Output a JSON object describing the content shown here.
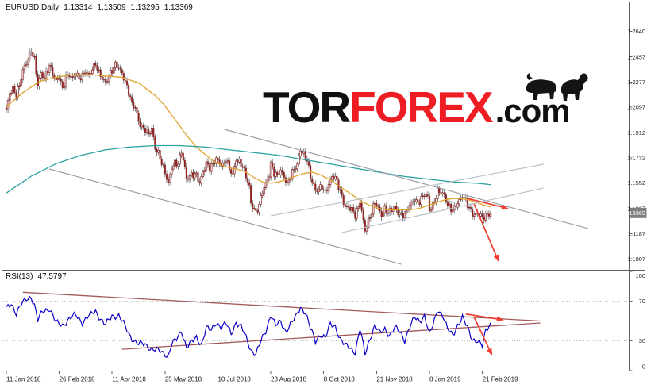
{
  "header": {
    "symbol_period": "EURUSD,Daily",
    "open": "1.13314",
    "high": "1.13509",
    "low": "1.13295",
    "close": "1.13369"
  },
  "watermark": {
    "tor": "TOR",
    "forex": "FOREX",
    "com": ".com"
  },
  "colors": {
    "bull_body": "#ffffff",
    "bear_body": "#8e2323",
    "candle_outline": "#8e2323",
    "wick": "#4a4a4a",
    "ma_fast": "#dfa32d",
    "ma_slow": "#2ba3a3",
    "trend_gray": "#9aa0a6",
    "trend_light": "#b9c2c9",
    "arrow": "#ef3b30",
    "rsi_line": "#0a00c8",
    "rsi_wedge": "#a25b5b",
    "price_tag_bg": "#7f7f7f",
    "frame": "#616161",
    "logo_red": "#ee1c23",
    "logo_black": "#101010"
  },
  "chart_data": {
    "type": "candlestick",
    "symbol": "EURUSD",
    "timeframe": "Daily",
    "last_quote": {
      "open": 1.13314,
      "high": 1.13509,
      "low": 1.13295,
      "close": 1.13369
    },
    "x_axis": {
      "bars_total": 294,
      "tick_bars": [
        0,
        32,
        64,
        96,
        128,
        160,
        192,
        224,
        256,
        288
      ],
      "tick_labels": [
        "11 Jan 2018",
        "26 Feb 2018",
        "11 Apr 2018",
        "25 May 2018",
        "10 Jul 2018",
        "23 Aug 2018",
        "8 Oct 2018",
        "21 Nov 2018",
        "8 Jan 2019",
        "21 Feb 2019"
      ]
    },
    "y_axis": {
      "range": [
        1.094,
        1.278
      ],
      "tick_labels": [
        "1.2640",
        "1.2457",
        "1.2277",
        "1.2097",
        "1.1912",
        "1.1732",
        "1.1552",
        "1.1367",
        "1.1187",
        "1.1007"
      ],
      "current_label": "1.13369"
    },
    "close_anchors": [
      [
        0,
        1.206
      ],
      [
        2,
        1.219
      ],
      [
        4,
        1.223
      ],
      [
        6,
        1.22
      ],
      [
        8,
        1.226
      ],
      [
        10,
        1.235
      ],
      [
        12,
        1.24
      ],
      [
        14,
        1.247
      ],
      [
        15,
        1.251
      ],
      [
        17,
        1.245
      ],
      [
        19,
        1.226
      ],
      [
        21,
        1.233
      ],
      [
        23,
        1.229
      ],
      [
        26,
        1.24
      ],
      [
        28,
        1.235
      ],
      [
        30,
        1.229
      ],
      [
        32,
        1.231
      ],
      [
        34,
        1.221
      ],
      [
        36,
        1.231
      ],
      [
        38,
        1.234
      ],
      [
        40,
        1.231
      ],
      [
        42,
        1.234
      ],
      [
        44,
        1.229
      ],
      [
        46,
        1.231
      ],
      [
        48,
        1.236
      ],
      [
        50,
        1.233
      ],
      [
        52,
        1.238
      ],
      [
        54,
        1.24
      ],
      [
        56,
        1.233
      ],
      [
        58,
        1.23
      ],
      [
        60,
        1.228
      ],
      [
        62,
        1.233
      ],
      [
        64,
        1.236
      ],
      [
        66,
        1.239
      ],
      [
        68,
        1.237
      ],
      [
        70,
        1.234
      ],
      [
        72,
        1.229
      ],
      [
        74,
        1.221
      ],
      [
        76,
        1.211
      ],
      [
        78,
        1.208
      ],
      [
        80,
        1.199
      ],
      [
        82,
        1.196
      ],
      [
        84,
        1.195
      ],
      [
        86,
        1.19
      ],
      [
        88,
        1.193
      ],
      [
        90,
        1.179
      ],
      [
        92,
        1.177
      ],
      [
        94,
        1.171
      ],
      [
        96,
        1.163
      ],
      [
        98,
        1.154
      ],
      [
        100,
        1.165
      ],
      [
        102,
        1.169
      ],
      [
        104,
        1.17
      ],
      [
        106,
        1.179
      ],
      [
        108,
        1.166
      ],
      [
        109,
        1.157
      ],
      [
        111,
        1.159
      ],
      [
        113,
        1.161
      ],
      [
        115,
        1.162
      ],
      [
        117,
        1.156
      ],
      [
        119,
        1.163
      ],
      [
        121,
        1.168
      ],
      [
        123,
        1.165
      ],
      [
        125,
        1.169
      ],
      [
        127,
        1.174
      ],
      [
        129,
        1.17
      ],
      [
        131,
        1.167
      ],
      [
        133,
        1.171
      ],
      [
        135,
        1.165
      ],
      [
        137,
        1.162
      ],
      [
        139,
        1.173
      ],
      [
        141,
        1.17
      ],
      [
        143,
        1.166
      ],
      [
        145,
        1.159
      ],
      [
        147,
        1.153
      ],
      [
        148,
        1.141
      ],
      [
        150,
        1.138
      ],
      [
        151,
        1.134
      ],
      [
        153,
        1.139
      ],
      [
        155,
        1.148
      ],
      [
        157,
        1.154
      ],
      [
        159,
        1.162
      ],
      [
        160,
        1.17
      ],
      [
        162,
        1.163
      ],
      [
        164,
        1.16
      ],
      [
        166,
        1.163
      ],
      [
        168,
        1.159
      ],
      [
        170,
        1.155
      ],
      [
        172,
        1.162
      ],
      [
        174,
        1.165
      ],
      [
        176,
        1.167
      ],
      [
        178,
        1.178
      ],
      [
        180,
        1.176
      ],
      [
        182,
        1.173
      ],
      [
        184,
        1.16
      ],
      [
        186,
        1.153
      ],
      [
        187,
        1.148
      ],
      [
        189,
        1.15
      ],
      [
        191,
        1.153
      ],
      [
        193,
        1.149
      ],
      [
        195,
        1.155
      ],
      [
        197,
        1.159
      ],
      [
        199,
        1.158
      ],
      [
        201,
        1.152
      ],
      [
        203,
        1.146
      ],
      [
        205,
        1.139
      ],
      [
        207,
        1.138
      ],
      [
        209,
        1.135
      ],
      [
        211,
        1.131
      ],
      [
        213,
        1.138
      ],
      [
        214,
        1.143
      ],
      [
        216,
        1.129
      ],
      [
        217,
        1.122
      ],
      [
        219,
        1.127
      ],
      [
        221,
        1.133
      ],
      [
        223,
        1.141
      ],
      [
        225,
        1.138
      ],
      [
        227,
        1.133
      ],
      [
        229,
        1.137
      ],
      [
        231,
        1.133
      ],
      [
        233,
        1.135
      ],
      [
        235,
        1.138
      ],
      [
        237,
        1.135
      ],
      [
        239,
        1.133
      ],
      [
        241,
        1.132
      ],
      [
        243,
        1.136
      ],
      [
        245,
        1.14
      ],
      [
        247,
        1.144
      ],
      [
        249,
        1.142
      ],
      [
        251,
        1.144
      ],
      [
        253,
        1.146
      ],
      [
        255,
        1.144
      ],
      [
        256,
        1.135
      ],
      [
        258,
        1.14
      ],
      [
        260,
        1.147
      ],
      [
        261,
        1.15
      ],
      [
        263,
        1.148
      ],
      [
        265,
        1.145
      ],
      [
        267,
        1.139
      ],
      [
        269,
        1.137
      ],
      [
        271,
        1.138
      ],
      [
        273,
        1.141
      ],
      [
        275,
        1.143
      ],
      [
        276,
        1.145
      ],
      [
        278,
        1.142
      ],
      [
        280,
        1.138
      ],
      [
        282,
        1.134
      ],
      [
        284,
        1.133
      ],
      [
        286,
        1.132
      ],
      [
        288,
        1.129
      ],
      [
        290,
        1.132
      ],
      [
        292,
        1.134
      ],
      [
        293,
        1.1337
      ]
    ],
    "moving_averages": [
      {
        "name": "ma-fast",
        "color": "#dfa32d",
        "points": [
          [
            0,
            1.21
          ],
          [
            10,
            1.22
          ],
          [
            20,
            1.228
          ],
          [
            30,
            1.231
          ],
          [
            40,
            1.233
          ],
          [
            50,
            1.233
          ],
          [
            60,
            1.232
          ],
          [
            70,
            1.231
          ],
          [
            80,
            1.227
          ],
          [
            90,
            1.218
          ],
          [
            95,
            1.212
          ],
          [
            100,
            1.204
          ],
          [
            105,
            1.196
          ],
          [
            110,
            1.188
          ],
          [
            115,
            1.181
          ],
          [
            120,
            1.176
          ],
          [
            125,
            1.171
          ],
          [
            130,
            1.168
          ],
          [
            135,
            1.166
          ],
          [
            140,
            1.165
          ],
          [
            145,
            1.163
          ],
          [
            150,
            1.159
          ],
          [
            155,
            1.156
          ],
          [
            160,
            1.155
          ],
          [
            165,
            1.156
          ],
          [
            170,
            1.158
          ],
          [
            175,
            1.16
          ],
          [
            180,
            1.162
          ],
          [
            185,
            1.163
          ],
          [
            190,
            1.161
          ],
          [
            195,
            1.158
          ],
          [
            200,
            1.154
          ],
          [
            205,
            1.15
          ],
          [
            210,
            1.146
          ],
          [
            215,
            1.142
          ],
          [
            220,
            1.139
          ],
          [
            225,
            1.137
          ],
          [
            230,
            1.136
          ],
          [
            235,
            1.136
          ],
          [
            240,
            1.136
          ],
          [
            245,
            1.136
          ],
          [
            250,
            1.137
          ],
          [
            255,
            1.139
          ],
          [
            260,
            1.141
          ],
          [
            265,
            1.143
          ],
          [
            270,
            1.144
          ],
          [
            275,
            1.144
          ],
          [
            280,
            1.143
          ],
          [
            285,
            1.141
          ],
          [
            290,
            1.139
          ],
          [
            293,
            1.138
          ]
        ]
      },
      {
        "name": "ma-slow",
        "color": "#2ba3a3",
        "points": [
          [
            0,
            1.148
          ],
          [
            15,
            1.16
          ],
          [
            30,
            1.169
          ],
          [
            45,
            1.175
          ],
          [
            60,
            1.179
          ],
          [
            75,
            1.181
          ],
          [
            90,
            1.182
          ],
          [
            105,
            1.182
          ],
          [
            120,
            1.181
          ],
          [
            135,
            1.179
          ],
          [
            150,
            1.177
          ],
          [
            165,
            1.175
          ],
          [
            180,
            1.172
          ],
          [
            195,
            1.169
          ],
          [
            210,
            1.166
          ],
          [
            225,
            1.163
          ],
          [
            240,
            1.16
          ],
          [
            255,
            1.158
          ],
          [
            270,
            1.156
          ],
          [
            285,
            1.155
          ],
          [
            293,
            1.154
          ]
        ]
      }
    ],
    "trendlines": [
      {
        "name": "descending-resistance",
        "color": "#9aa0a6",
        "from": [
          132,
          1.1937
        ],
        "to": [
          352,
          1.1224
        ]
      },
      {
        "name": "descending-support",
        "color": "#9aa0a6",
        "from": [
          26,
          1.1652
        ],
        "to": [
          239,
          1.0968
        ]
      },
      {
        "name": "ascending-channel-upper",
        "color": "#b9c2c9",
        "from": [
          160,
          1.1316
        ],
        "to": [
          325,
          1.1686
        ]
      },
      {
        "name": "ascending-channel-lower",
        "color": "#b9c2c9",
        "from": [
          203,
          1.1196
        ],
        "to": [
          325,
          1.1515
        ]
      }
    ],
    "forecast_arrows": [
      {
        "from": [
          279,
          1.1441
        ],
        "to": [
          304,
          1.1367
        ]
      },
      {
        "from": [
          283,
          1.1401
        ],
        "to": [
          298,
          1.0985
        ]
      }
    ],
    "rsi_panel": {
      "type": "line",
      "label_name": "RSI(13)",
      "label_value": "47.5797",
      "range": [
        0,
        100
      ],
      "levels": [
        70,
        30
      ],
      "axis_labels": [
        "100",
        "70",
        "30",
        "0"
      ],
      "color": "#0a00c8",
      "anchors": [
        [
          0,
          62
        ],
        [
          3,
          68
        ],
        [
          6,
          58
        ],
        [
          9,
          66
        ],
        [
          12,
          72
        ],
        [
          15,
          75
        ],
        [
          17,
          66
        ],
        [
          19,
          50
        ],
        [
          22,
          60
        ],
        [
          26,
          63
        ],
        [
          28,
          56
        ],
        [
          30,
          48
        ],
        [
          34,
          46
        ],
        [
          38,
          52
        ],
        [
          42,
          56
        ],
        [
          46,
          49
        ],
        [
          50,
          55
        ],
        [
          54,
          60
        ],
        [
          58,
          50
        ],
        [
          60,
          46
        ],
        [
          64,
          55
        ],
        [
          68,
          56
        ],
        [
          71,
          47
        ],
        [
          74,
          37
        ],
        [
          77,
          31
        ],
        [
          80,
          27
        ],
        [
          84,
          26
        ],
        [
          87,
          23
        ],
        [
          90,
          21
        ],
        [
          93,
          19
        ],
        [
          96,
          17
        ],
        [
          98,
          15
        ],
        [
          100,
          27
        ],
        [
          103,
          31
        ],
        [
          106,
          40
        ],
        [
          109,
          24
        ],
        [
          112,
          28
        ],
        [
          115,
          33
        ],
        [
          118,
          27
        ],
        [
          121,
          43
        ],
        [
          124,
          40
        ],
        [
          127,
          49
        ],
        [
          130,
          44
        ],
        [
          133,
          47
        ],
        [
          136,
          37
        ],
        [
          139,
          49
        ],
        [
          142,
          44
        ],
        [
          145,
          33
        ],
        [
          148,
          21
        ],
        [
          151,
          17
        ],
        [
          154,
          29
        ],
        [
          157,
          40
        ],
        [
          160,
          57
        ],
        [
          163,
          45
        ],
        [
          166,
          49
        ],
        [
          169,
          40
        ],
        [
          172,
          47
        ],
        [
          175,
          53
        ],
        [
          178,
          64
        ],
        [
          181,
          59
        ],
        [
          184,
          42
        ],
        [
          187,
          29
        ],
        [
          190,
          37
        ],
        [
          193,
          33
        ],
        [
          196,
          46
        ],
        [
          199,
          45
        ],
        [
          202,
          32
        ],
        [
          205,
          25
        ],
        [
          208,
          23
        ],
        [
          211,
          19
        ],
        [
          214,
          42
        ],
        [
          217,
          16
        ],
        [
          220,
          33
        ],
        [
          223,
          46
        ],
        [
          226,
          37
        ],
        [
          229,
          42
        ],
        [
          232,
          36
        ],
        [
          235,
          43
        ],
        [
          238,
          39
        ],
        [
          241,
          31
        ],
        [
          244,
          44
        ],
        [
          247,
          53
        ],
        [
          250,
          50
        ],
        [
          253,
          56
        ],
        [
          256,
          36
        ],
        [
          258,
          45
        ],
        [
          261,
          62
        ],
        [
          264,
          56
        ],
        [
          267,
          41
        ],
        [
          270,
          36
        ],
        [
          273,
          46
        ],
        [
          276,
          53
        ],
        [
          279,
          43
        ],
        [
          282,
          32
        ],
        [
          285,
          30
        ],
        [
          288,
          24
        ],
        [
          290,
          40
        ],
        [
          292,
          46
        ],
        [
          293,
          47.6
        ]
      ],
      "wedge_lines": [
        {
          "name": "rsi-wedge-upper",
          "from": [
            10,
            79
          ],
          "to": [
            323,
            50
          ]
        },
        {
          "name": "rsi-wedge-lower",
          "from": [
            70,
            21.5
          ],
          "to": [
            323,
            48
          ]
        }
      ],
      "forecast_arrows": [
        {
          "from": [
            278,
            57
          ],
          "to": [
            301,
            51
          ]
        },
        {
          "from": [
            283,
            54
          ],
          "to": [
            294,
            15
          ]
        }
      ]
    }
  }
}
